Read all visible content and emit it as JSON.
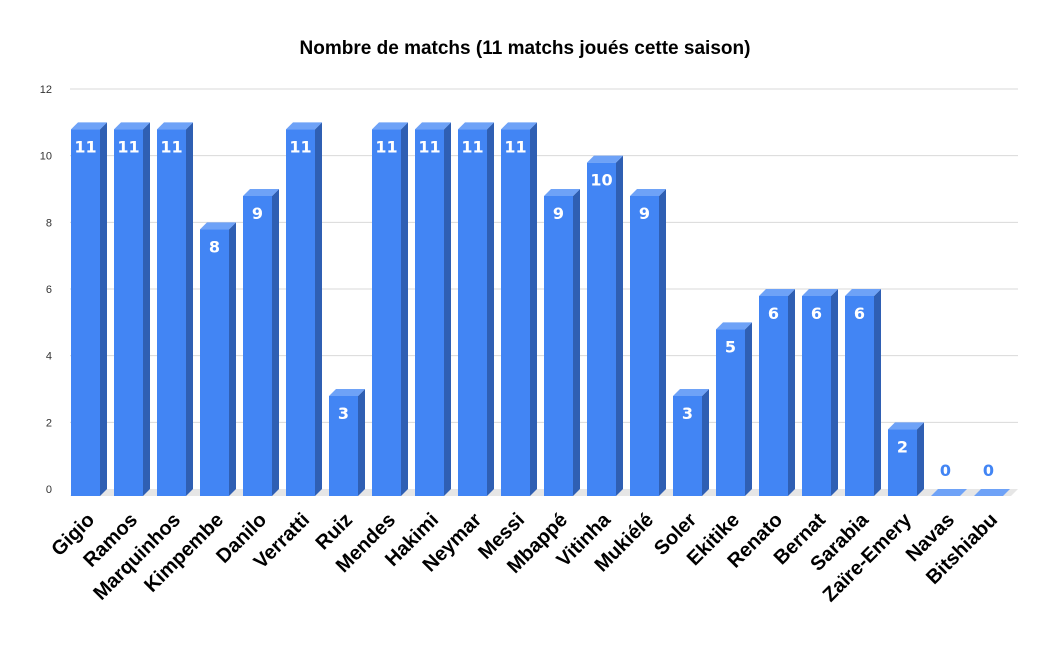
{
  "chart_data": {
    "type": "bar",
    "style": "3d-column",
    "title": "Nombre de matchs (11 matchs joués cette saison)",
    "xlabel": "",
    "ylabel": "",
    "ylim": [
      0,
      12
    ],
    "yticks": [
      0,
      2,
      4,
      6,
      8,
      10,
      12
    ],
    "grid": true,
    "legend": "none",
    "categories": [
      "Gigio",
      "Ramos",
      "Marquinhos",
      "Kimpembe",
      "Danilo",
      "Verratti",
      "Ruiz",
      "Mendes",
      "Hakimi",
      "Neymar",
      "Messi",
      "Mbappé",
      "Vitinha",
      "Mukiélé",
      "Soler",
      "Ekitike",
      "Renato",
      "Bernat",
      "Sarabia",
      "Zaïre-Emery",
      "Navas",
      "Bitshiabu"
    ],
    "values": [
      11,
      11,
      11,
      8,
      9,
      11,
      3,
      11,
      11,
      11,
      11,
      9,
      10,
      9,
      3,
      5,
      6,
      6,
      6,
      2,
      0,
      0
    ],
    "colors": {
      "bar_front": "#4285f4",
      "bar_side": "#2f5fb3",
      "bar_top": "#6ea2f7",
      "grid": "#d9d9d9",
      "floor": "#e6e6e6",
      "label_inside": "#ffffff",
      "label_outside": "#4285f4"
    }
  }
}
